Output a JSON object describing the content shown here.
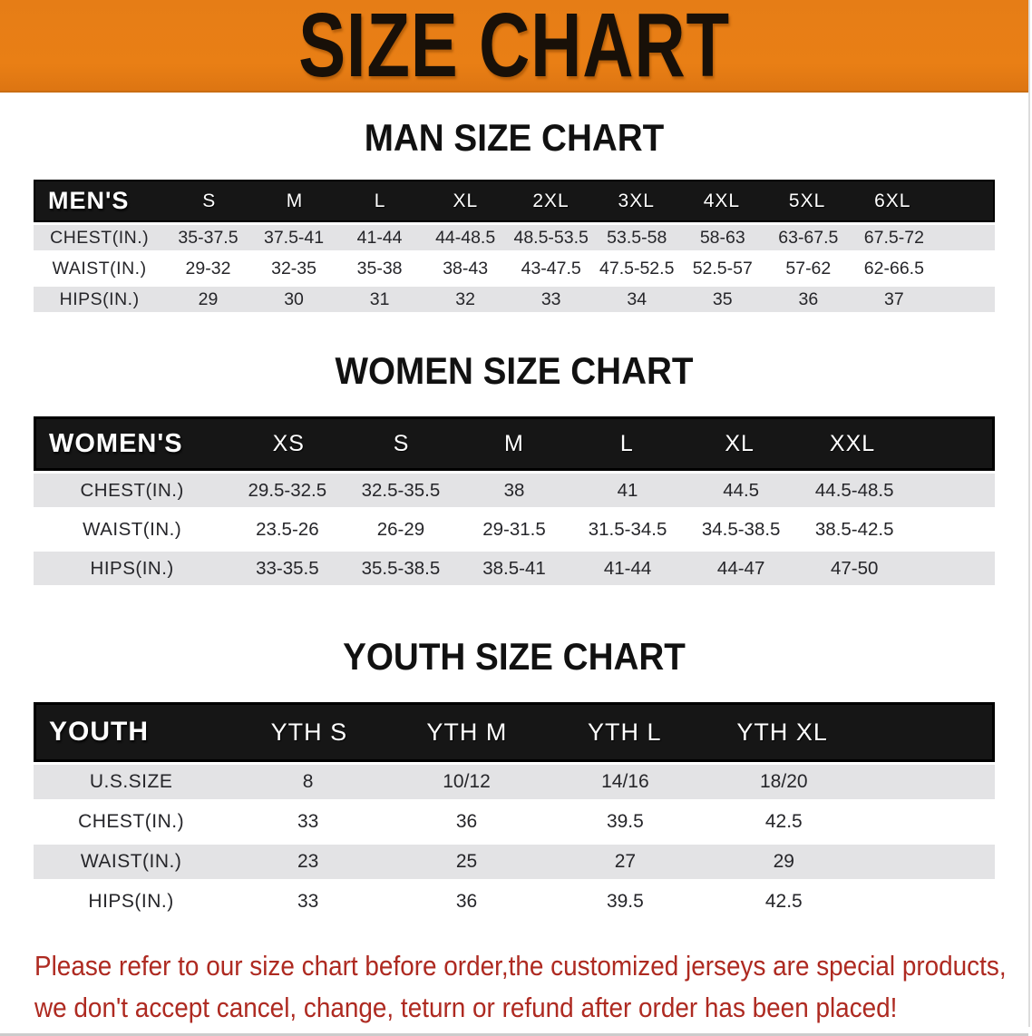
{
  "banner": {
    "title": "SIZE CHART"
  },
  "colors": {
    "banner_bg": "#e67d16",
    "header_bg": "#161616",
    "row_gray": "#e3e3e5",
    "disclaimer_red": "#ae2a21"
  },
  "sections": [
    {
      "heading": "MAN SIZE CHART",
      "table": {
        "label": "MEN'S",
        "columns": [
          "S",
          "M",
          "L",
          "XL",
          "2XL",
          "3XL",
          "4XL",
          "5XL",
          "6XL"
        ],
        "rows": [
          {
            "label": "CHEST(IN.)",
            "values": [
              "35-37.5",
              "37.5-41",
              "41-44",
              "44-48.5",
              "48.5-53.5",
              "53.5-58",
              "58-63",
              "63-67.5",
              "67.5-72"
            ]
          },
          {
            "label": "WAIST(IN.)",
            "values": [
              "29-32",
              "32-35",
              "35-38",
              "38-43",
              "43-47.5",
              "47.5-52.5",
              "52.5-57",
              "57-62",
              "62-66.5"
            ]
          },
          {
            "label": "HIPS(IN.)",
            "values": [
              "29",
              "30",
              "31",
              "32",
              "33",
              "34",
              "35",
              "36",
              "37"
            ]
          }
        ]
      }
    },
    {
      "heading": "WOMEN SIZE CHART",
      "table": {
        "label": "WOMEN'S",
        "columns": [
          "XS",
          "S",
          "M",
          "L",
          "XL",
          "XXL"
        ],
        "rows": [
          {
            "label": "CHEST(IN.)",
            "values": [
              "29.5-32.5",
              "32.5-35.5",
              "38",
              "41",
              "44.5",
              "44.5-48.5"
            ]
          },
          {
            "label": "WAIST(IN.)",
            "values": [
              "23.5-26",
              "26-29",
              "29-31.5",
              "31.5-34.5",
              "34.5-38.5",
              "38.5-42.5"
            ]
          },
          {
            "label": "HIPS(IN.)",
            "values": [
              "33-35.5",
              "35.5-38.5",
              "38.5-41",
              "41-44",
              "44-47",
              "47-50"
            ]
          }
        ]
      }
    },
    {
      "heading": "YOUTH SIZE CHART",
      "table": {
        "label": "YOUTH",
        "columns": [
          "YTH S",
          "YTH M",
          "YTH L",
          "YTH XL"
        ],
        "rows": [
          {
            "label": "U.S.SIZE",
            "values": [
              "8",
              "10/12",
              "14/16",
              "18/20"
            ]
          },
          {
            "label": "CHEST(IN.)",
            "values": [
              "33",
              "36",
              "39.5",
              "42.5"
            ]
          },
          {
            "label": "WAIST(IN.)",
            "values": [
              "23",
              "25",
              "27",
              "29"
            ]
          },
          {
            "label": "HIPS(IN.)",
            "values": [
              "33",
              "36",
              "39.5",
              "42.5"
            ]
          }
        ]
      }
    }
  ],
  "disclaimer": {
    "line1": "Please refer to our size chart before order,the customized jerseys are special products,",
    "line2": "we don't accept cancel, change, teturn or refund after order has been placed!"
  }
}
